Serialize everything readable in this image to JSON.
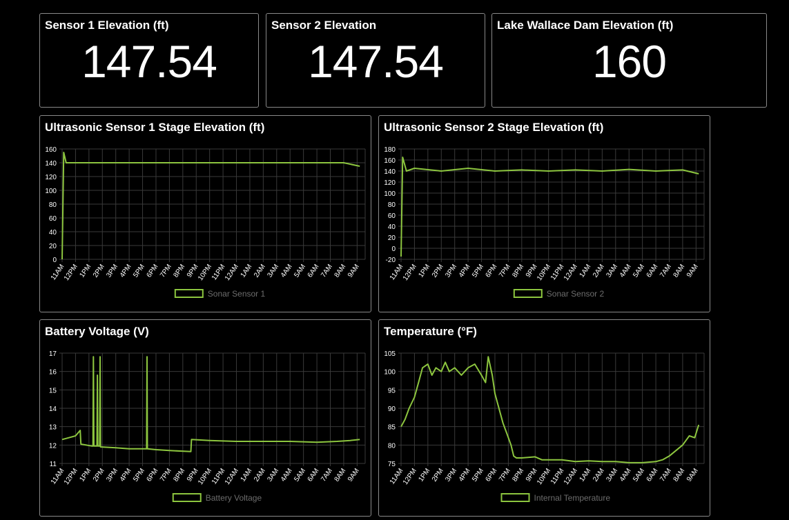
{
  "stats": [
    {
      "title": "Sensor 1 Elevation (ft)",
      "value": "147.54"
    },
    {
      "title": "Sensor 2 Elevation",
      "value": "147.54"
    },
    {
      "title": "Lake Wallace Dam Elevation (ft)",
      "value": "160"
    }
  ],
  "colors": {
    "line": "#8dc63f",
    "grid": "#3a3a3a",
    "tick": "#ffffff",
    "legend_text": "#6d6d6d",
    "border": "#8a8a8a"
  },
  "chart_data": [
    {
      "type": "line",
      "title": "Ultrasonic Sensor 1 Stage Elevation (ft)",
      "categories": [
        "11AM",
        "12PM",
        "1PM",
        "2PM",
        "3PM",
        "4PM",
        "5PM",
        "6PM",
        "7PM",
        "8PM",
        "9PM",
        "10PM",
        "11PM",
        "12AM",
        "1AM",
        "2AM",
        "3AM",
        "4AM",
        "5AM",
        "6AM",
        "7AM",
        "8AM",
        "9AM"
      ],
      "y_ticks": [
        0,
        20,
        40,
        60,
        80,
        100,
        120,
        140,
        160
      ],
      "ylim": [
        0,
        160
      ],
      "grid": true,
      "legend_position": "bottom",
      "series": [
        {
          "name": "Sonar Sensor 1",
          "points": [
            [
              0,
              0
            ],
            [
              0.12,
              155
            ],
            [
              0.3,
              140
            ],
            [
              1,
              140
            ],
            [
              3,
              140
            ],
            [
              5,
              140
            ],
            [
              7,
              140
            ],
            [
              9,
              140
            ],
            [
              11,
              140
            ],
            [
              13,
              140
            ],
            [
              15,
              140
            ],
            [
              17,
              140
            ],
            [
              19,
              140
            ],
            [
              21,
              140
            ],
            [
              22.2,
              135
            ]
          ]
        }
      ]
    },
    {
      "type": "line",
      "title": "Ultrasonic Sensor 2 Stage Elevation (ft)",
      "categories": [
        "11AM",
        "12PM",
        "1PM",
        "2PM",
        "3PM",
        "4PM",
        "5PM",
        "6PM",
        "7PM",
        "8PM",
        "9PM",
        "10PM",
        "11PM",
        "12AM",
        "1AM",
        "2AM",
        "3AM",
        "4AM",
        "5AM",
        "6AM",
        "7AM",
        "8AM",
        "9AM"
      ],
      "y_ticks": [
        -20,
        0,
        20,
        40,
        60,
        80,
        100,
        120,
        140,
        160,
        180
      ],
      "ylim": [
        -20,
        180
      ],
      "grid": true,
      "legend_position": "bottom",
      "series": [
        {
          "name": "Sonar Sensor 2",
          "points": [
            [
              0,
              -15
            ],
            [
              0.12,
              165
            ],
            [
              0.4,
              140
            ],
            [
              1,
              145
            ],
            [
              3,
              140
            ],
            [
              5,
              145
            ],
            [
              7,
              140
            ],
            [
              9,
              142
            ],
            [
              11,
              140
            ],
            [
              13,
              142
            ],
            [
              15,
              140
            ],
            [
              17,
              143
            ],
            [
              19,
              140
            ],
            [
              21,
              142
            ],
            [
              22.2,
              135
            ]
          ]
        }
      ]
    },
    {
      "type": "line",
      "title": "Battery Voltage (V)",
      "categories": [
        "11AM",
        "12PM",
        "1PM",
        "2PM",
        "3PM",
        "4PM",
        "5PM",
        "6PM",
        "7PM",
        "8PM",
        "9PM",
        "10PM",
        "11PM",
        "12AM",
        "1AM",
        "2AM",
        "3AM",
        "4AM",
        "5AM",
        "6AM",
        "7AM",
        "8AM",
        "9AM"
      ],
      "y_ticks": [
        11,
        12,
        13,
        14,
        15,
        16,
        17
      ],
      "ylim": [
        11,
        17
      ],
      "grid": true,
      "legend_position": "bottom",
      "series": [
        {
          "name": "Battery Voltage",
          "points": [
            [
              0,
              12.3
            ],
            [
              0.5,
              12.4
            ],
            [
              1,
              12.5
            ],
            [
              1.35,
              12.8
            ],
            [
              1.4,
              12.05
            ],
            [
              2.2,
              11.95
            ],
            [
              2.3,
              11.95
            ],
            [
              2.33,
              16.8
            ],
            [
              2.37,
              11.95
            ],
            [
              2.6,
              11.95
            ],
            [
              2.63,
              15.8
            ],
            [
              2.66,
              11.95
            ],
            [
              2.8,
              11.95
            ],
            [
              2.83,
              16.8
            ],
            [
              2.86,
              11.9
            ],
            [
              4,
              11.85
            ],
            [
              5,
              11.8
            ],
            [
              6.3,
              11.8
            ],
            [
              6.33,
              16.8
            ],
            [
              6.36,
              11.8
            ],
            [
              7,
              11.75
            ],
            [
              8,
              11.7
            ],
            [
              9.6,
              11.65
            ],
            [
              9.65,
              12.3
            ],
            [
              11,
              12.25
            ],
            [
              13,
              12.2
            ],
            [
              15,
              12.2
            ],
            [
              17,
              12.2
            ],
            [
              19,
              12.15
            ],
            [
              20.5,
              12.2
            ],
            [
              21.5,
              12.25
            ],
            [
              22.2,
              12.3
            ]
          ]
        }
      ]
    },
    {
      "type": "line",
      "title": "Temperature (°F)",
      "categories": [
        "11AM",
        "12PM",
        "1PM",
        "2PM",
        "3PM",
        "4PM",
        "5PM",
        "6PM",
        "7PM",
        "8PM",
        "9PM",
        "10PM",
        "11PM",
        "12AM",
        "1AM",
        "2AM",
        "3AM",
        "4AM",
        "5AM",
        "6AM",
        "7AM",
        "8AM",
        "9AM"
      ],
      "y_ticks": [
        75,
        80,
        85,
        90,
        95,
        100,
        105
      ],
      "ylim": [
        75,
        105
      ],
      "grid": true,
      "legend_position": "bottom",
      "series": [
        {
          "name": "Internal Temperature",
          "points": [
            [
              0,
              85
            ],
            [
              0.3,
              87
            ],
            [
              0.6,
              90
            ],
            [
              1,
              93
            ],
            [
              1.3,
              97
            ],
            [
              1.6,
              101
            ],
            [
              2,
              102
            ],
            [
              2.3,
              99
            ],
            [
              2.6,
              101
            ],
            [
              3,
              100
            ],
            [
              3.3,
              102.5
            ],
            [
              3.6,
              100
            ],
            [
              4,
              101
            ],
            [
              4.5,
              99
            ],
            [
              5,
              101
            ],
            [
              5.5,
              102
            ],
            [
              6,
              99
            ],
            [
              6.3,
              97
            ],
            [
              6.5,
              104
            ],
            [
              6.8,
              99
            ],
            [
              7,
              94
            ],
            [
              7.3,
              90
            ],
            [
              7.6,
              86
            ],
            [
              7.9,
              83
            ],
            [
              8.2,
              80
            ],
            [
              8.4,
              77
            ],
            [
              8.6,
              76.5
            ],
            [
              9,
              76.5
            ],
            [
              10,
              76.8
            ],
            [
              10.5,
              76
            ],
            [
              12,
              76
            ],
            [
              13,
              75.5
            ],
            [
              14,
              75.7
            ],
            [
              15,
              75.5
            ],
            [
              16,
              75.5
            ],
            [
              17,
              75.2
            ],
            [
              18,
              75.2
            ],
            [
              19,
              75.5
            ],
            [
              19.5,
              76
            ],
            [
              20,
              77
            ],
            [
              20.5,
              78.5
            ],
            [
              21,
              80
            ],
            [
              21.5,
              82.5
            ],
            [
              21.9,
              82
            ],
            [
              22.2,
              85.5
            ]
          ]
        }
      ]
    }
  ]
}
